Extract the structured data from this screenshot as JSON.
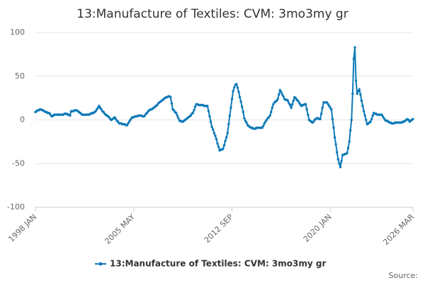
{
  "chart_data": {
    "type": "line",
    "title": "13:Manufacture of Textiles: CVM: 3mo3my gr",
    "source": "Source:",
    "categories": [
      "1998 JAN",
      null,
      null,
      null,
      null,
      null,
      null,
      null,
      null,
      null,
      null,
      null,
      null,
      null,
      null,
      null,
      null,
      null,
      null,
      null,
      null,
      null,
      null,
      null,
      null,
      null,
      null,
      null,
      null,
      null,
      null,
      null,
      null,
      null,
      null,
      null,
      null,
      null,
      null,
      null,
      null,
      null,
      null,
      null,
      null,
      null,
      null,
      null,
      null,
      null,
      null,
      null,
      null,
      null,
      null,
      null,
      null,
      null,
      null,
      null,
      null,
      null,
      null,
      null,
      null,
      null,
      null,
      null,
      null,
      null,
      null,
      null,
      null,
      null,
      null,
      null,
      null,
      null,
      null,
      null,
      null,
      null,
      null,
      null,
      null,
      null,
      null,
      null,
      "2005 MAY",
      null,
      null,
      null,
      null,
      null,
      null,
      null,
      null,
      null,
      null,
      null,
      null,
      null,
      null,
      null,
      null,
      null,
      null,
      null,
      null,
      null,
      null,
      null,
      null,
      null,
      null,
      null,
      null,
      null,
      null,
      null,
      null,
      null,
      null,
      null,
      null,
      null,
      null,
      null,
      null,
      null,
      null,
      null,
      null,
      null,
      null,
      null,
      null,
      null,
      null,
      null,
      null,
      null,
      null,
      null,
      null,
      null,
      null,
      null,
      null,
      null,
      null,
      null,
      null,
      null,
      null,
      null,
      null,
      null,
      null,
      null,
      null,
      null,
      null,
      null,
      null,
      null,
      null,
      null,
      null,
      null,
      null,
      null,
      null,
      null,
      null,
      null,
      "2012 SEP",
      null,
      null,
      null,
      null,
      null,
      null,
      null,
      null,
      null,
      null,
      null,
      null,
      null,
      null,
      null,
      null,
      null,
      null,
      null,
      null,
      null,
      null,
      null,
      null,
      null,
      null,
      null,
      null,
      null,
      null,
      null,
      null,
      null,
      null,
      null,
      null,
      null,
      null,
      null,
      null,
      null,
      null,
      null,
      null,
      null,
      null,
      null,
      null,
      null,
      null,
      null,
      null,
      null,
      null,
      null,
      null,
      null,
      null,
      null,
      null,
      null,
      null,
      null,
      null,
      null,
      null,
      null,
      null,
      null,
      null,
      null,
      null,
      null,
      null,
      null,
      null,
      null,
      null,
      null,
      null,
      null,
      null,
      null,
      null,
      null,
      null,
      null,
      "2020 JAN",
      null,
      null,
      null,
      null,
      null,
      null,
      null,
      null,
      null,
      null,
      null,
      null,
      null,
      null,
      null,
      null,
      null,
      null,
      null,
      null,
      null,
      null,
      null,
      null,
      null,
      null,
      null,
      null,
      null,
      null,
      null,
      null,
      null,
      null,
      null,
      null,
      null,
      null,
      null,
      null,
      null,
      null,
      null,
      null,
      null,
      null,
      null,
      null,
      null,
      null,
      null,
      null,
      null,
      null,
      null,
      null,
      null,
      null,
      null,
      null,
      null,
      null,
      null,
      null,
      null,
      null,
      null,
      null,
      null,
      null,
      null,
      null,
      null,
      "2026 MAR"
    ],
    "series": [
      {
        "name": "13:Manufacture of Textiles: CVM: 3mo3my gr",
        "color": "#0e7ab8",
        "values": [
          9,
          10,
          11,
          11,
          12,
          12,
          11,
          11,
          10,
          9,
          9,
          8,
          8,
          7,
          5,
          4,
          5,
          6,
          6,
          6,
          6,
          6,
          6,
          6,
          6,
          6,
          7,
          7,
          7,
          6,
          6,
          5,
          10,
          10,
          10,
          11,
          11,
          11,
          10,
          9,
          8,
          7,
          6,
          6,
          6,
          6,
          6,
          6,
          6,
          7,
          7,
          8,
          8,
          9,
          10,
          12,
          14,
          16,
          14,
          12,
          10,
          9,
          7,
          6,
          5,
          4,
          3,
          1,
          0,
          1,
          2,
          3,
          1,
          -1,
          -2,
          -4,
          -4,
          -4,
          -5,
          -5,
          -5,
          -6,
          -6,
          -4,
          -2,
          0,
          2,
          3,
          3,
          4,
          4,
          4,
          5,
          5,
          5,
          5,
          4,
          4,
          5,
          7,
          8,
          10,
          11,
          12,
          12,
          13,
          14,
          15,
          16,
          17,
          19,
          20,
          21,
          22,
          23,
          24,
          25,
          26,
          26,
          27,
          27,
          26,
          19,
          12,
          11,
          9,
          8,
          5,
          2,
          -1,
          -1,
          -2,
          -2,
          -1,
          0,
          1,
          2,
          3,
          4,
          5,
          7,
          8,
          11,
          15,
          18,
          18,
          17,
          17,
          17,
          17,
          17,
          16,
          16,
          16,
          16,
          10,
          4,
          -2,
          -8,
          -11,
          -15,
          -18,
          -22,
          -27,
          -31,
          -35,
          -34,
          -34,
          -33,
          -29,
          -24,
          -20,
          -15,
          -5,
          5,
          14,
          24,
          33,
          37,
          40,
          41,
          37,
          32,
          26,
          21,
          15,
          9,
          2,
          -1,
          -3,
          -6,
          -7,
          -8,
          -9,
          -9,
          -10,
          -10,
          -10,
          -9,
          -9,
          -9,
          -9,
          -9,
          -9,
          -7,
          -4,
          -2,
          0,
          2,
          3,
          5,
          9,
          14,
          18,
          20,
          21,
          22,
          24,
          29,
          34,
          32,
          29,
          27,
          24,
          23,
          23,
          22,
          19,
          17,
          14,
          18,
          22,
          26,
          25,
          23,
          22,
          20,
          18,
          16,
          17,
          17,
          18,
          18,
          12,
          6,
          0,
          -1,
          -2,
          -3,
          -2,
          0,
          1,
          2,
          2,
          1,
          1,
          7,
          14,
          20,
          20,
          20,
          20,
          18,
          16,
          14,
          12,
          1,
          -9,
          -20,
          -28,
          -37,
          -45,
          -50,
          -54,
          -47,
          -40,
          -40,
          -39,
          -39,
          -38,
          -32,
          -25,
          -12,
          0,
          30,
          70,
          83,
          45,
          30,
          33,
          35,
          29,
          22,
          16,
          10,
          5,
          0,
          -5,
          -4,
          -3,
          -2,
          1,
          5,
          8,
          7,
          7,
          6,
          6,
          6,
          6,
          6,
          4,
          2,
          0,
          -1,
          -1,
          -2,
          -3,
          -3,
          -4,
          -4,
          -4,
          -3,
          -3,
          -3,
          -3,
          -3,
          -3,
          -3,
          -2,
          -2,
          -1,
          0,
          1,
          0,
          -2,
          -1,
          0,
          1
        ]
      }
    ],
    "ylim": [
      -100,
      100
    ],
    "yticks": [
      -100,
      -50,
      0,
      50,
      100
    ],
    "grid": true,
    "legend": "bottom"
  }
}
